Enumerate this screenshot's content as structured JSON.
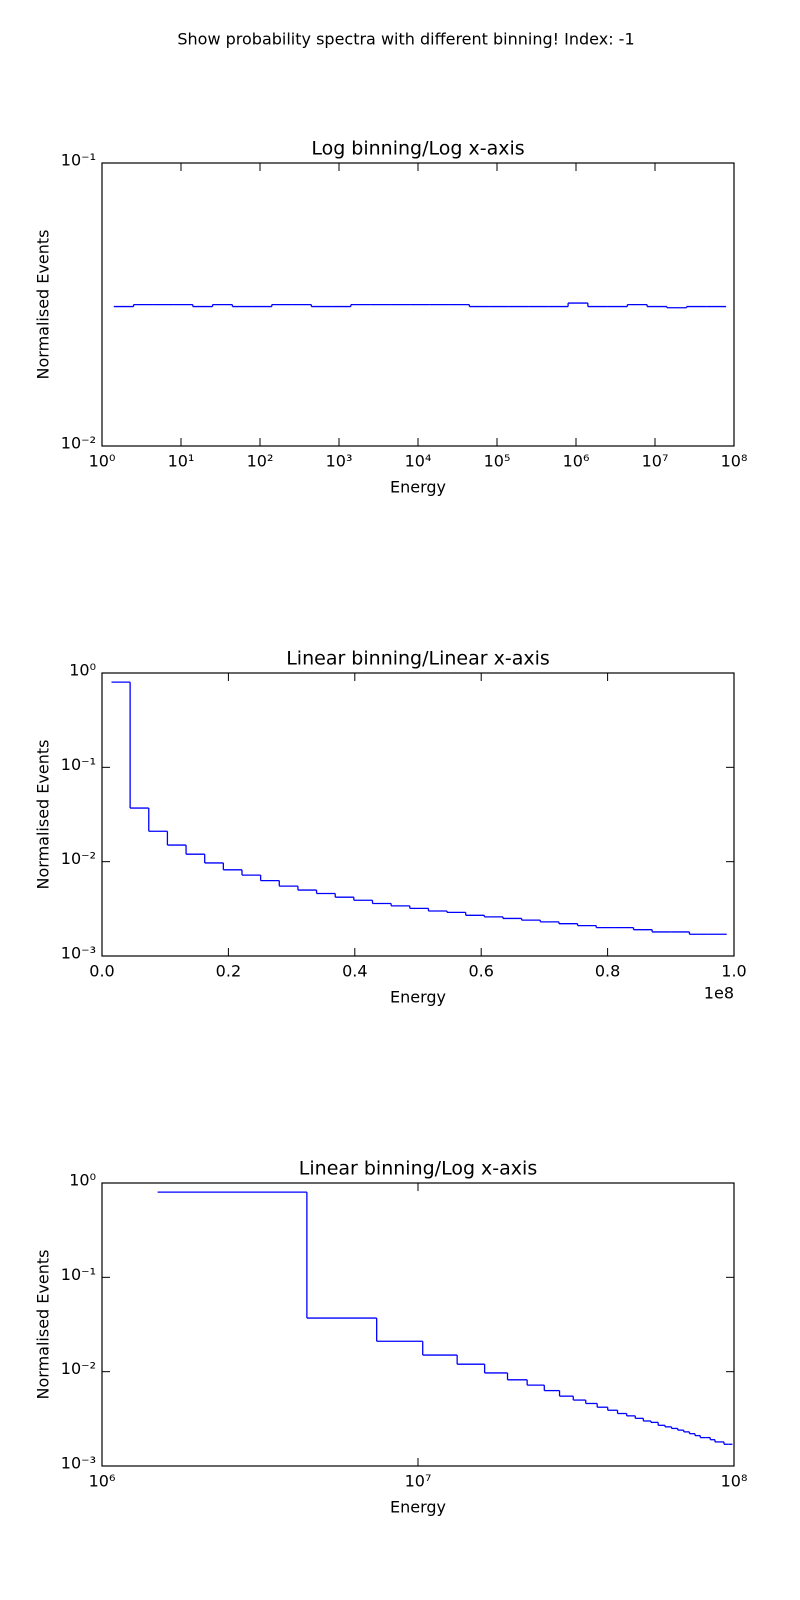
{
  "title": "Show probability spectra with different binning! Index: -1",
  "chart_data": [
    {
      "type": "histogram",
      "title": "Log binning/Log x-axis",
      "xlabel": "Energy",
      "ylabel": "Normalised Events",
      "color": "#0000ff",
      "xscale": "log",
      "yscale": "log",
      "xlim": [
        1,
        100000000
      ],
      "ylim": [
        0.01,
        0.1
      ],
      "xticks": [
        {
          "value": 1,
          "label": "10⁰"
        },
        {
          "value": 10,
          "label": "10¹"
        },
        {
          "value": 100,
          "label": "10²"
        },
        {
          "value": 1000,
          "label": "10³"
        },
        {
          "value": 10000,
          "label": "10⁴"
        },
        {
          "value": 100000,
          "label": "10⁵"
        },
        {
          "value": 1000000,
          "label": "10⁶"
        },
        {
          "value": 10000000,
          "label": "10⁷"
        },
        {
          "value": 100000000,
          "label": "10⁸"
        }
      ],
      "yticks": [
        {
          "value": 0.01,
          "label": "10⁻²"
        },
        {
          "value": 0.1,
          "label": "10⁻¹"
        }
      ],
      "bins": [
        1.41,
        2.51,
        4.47,
        7.94,
        14.1,
        25.1,
        44.7,
        79.4,
        141,
        251,
        447,
        794,
        1413,
        2512,
        4467,
        7943,
        14125,
        25119,
        44668,
        79433,
        141254,
        251189,
        446684,
        794328,
        1412538,
        2511886,
        4466836,
        7943282,
        14125375,
        25118864,
        44668359,
        79432823
      ],
      "values": [
        0.0311,
        0.0316,
        0.0316,
        0.0316,
        0.0311,
        0.0316,
        0.0311,
        0.0311,
        0.0316,
        0.0316,
        0.0311,
        0.0311,
        0.0316,
        0.0316,
        0.0316,
        0.0316,
        0.0316,
        0.0316,
        0.0311,
        0.0311,
        0.0311,
        0.0311,
        0.0311,
        0.032,
        0.0311,
        0.0311,
        0.0316,
        0.0311,
        0.0308,
        0.0311,
        0.0311
      ]
    },
    {
      "type": "histogram",
      "title": "Linear binning/Linear x-axis",
      "xlabel": "Energy",
      "ylabel": "Normalised Events",
      "color": "#0000ff",
      "xscale": "linear",
      "yscale": "log",
      "x_offset_label": "1e8",
      "xlim": [
        0,
        100000000
      ],
      "ylim": [
        0.001,
        1
      ],
      "xticks": [
        {
          "value": 0,
          "label": "0.0"
        },
        {
          "value": 20000000,
          "label": "0.2"
        },
        {
          "value": 40000000,
          "label": "0.4"
        },
        {
          "value": 60000000,
          "label": "0.6"
        },
        {
          "value": 80000000,
          "label": "0.8"
        },
        {
          "value": 100000000,
          "label": "1.0"
        }
      ],
      "yticks": [
        {
          "value": 0.001,
          "label": "10⁻³"
        },
        {
          "value": 0.01,
          "label": "10⁻²"
        },
        {
          "value": 0.1,
          "label": "10⁻¹"
        },
        {
          "value": 1,
          "label": "10⁰"
        }
      ],
      "bins": [
        1500000,
        4450000,
        7400000,
        10350000,
        13300000,
        16250000,
        19200000,
        22150000,
        25100000,
        28050000,
        31000000,
        33950000,
        36900000,
        39850000,
        42800000,
        45750000,
        48700000,
        51650000,
        54600000,
        57550000,
        60500000,
        63450000,
        66400000,
        69350000,
        72300000,
        75250000,
        78200000,
        81150000,
        84100000,
        87050000,
        90000000,
        92950000,
        95900000,
        98850000
      ],
      "values": [
        0.8,
        0.037,
        0.021,
        0.015,
        0.012,
        0.0097,
        0.0082,
        0.0072,
        0.0063,
        0.0055,
        0.005,
        0.0046,
        0.0042,
        0.0039,
        0.0036,
        0.0034,
        0.0032,
        0.003,
        0.0029,
        0.0027,
        0.0026,
        0.0025,
        0.0024,
        0.0023,
        0.0022,
        0.0021,
        0.002,
        0.002,
        0.0019,
        0.0018,
        0.0018,
        0.0017,
        0.0017
      ]
    },
    {
      "type": "histogram",
      "title": "Linear binning/Log x-axis",
      "xlabel": "Energy",
      "ylabel": "Normalised Events",
      "color": "#0000ff",
      "xscale": "log",
      "yscale": "log",
      "xlim": [
        1000000,
        100000000
      ],
      "ylim": [
        0.001,
        1
      ],
      "xticks": [
        {
          "value": 1000000,
          "label": "10⁶"
        },
        {
          "value": 10000000,
          "label": "10⁷"
        },
        {
          "value": 100000000,
          "label": "10⁸"
        }
      ],
      "yticks": [
        {
          "value": 0.001,
          "label": "10⁻³"
        },
        {
          "value": 0.01,
          "label": "10⁻²"
        },
        {
          "value": 0.1,
          "label": "10⁻¹"
        },
        {
          "value": 1,
          "label": "10⁰"
        }
      ],
      "bins": [
        1500000,
        4450000,
        7400000,
        10350000,
        13300000,
        16250000,
        19200000,
        22150000,
        25100000,
        28050000,
        31000000,
        33950000,
        36900000,
        39850000,
        42800000,
        45750000,
        48700000,
        51650000,
        54600000,
        57550000,
        60500000,
        63450000,
        66400000,
        69350000,
        72300000,
        75250000,
        78200000,
        81150000,
        84100000,
        87050000,
        90000000,
        92950000,
        95900000,
        98850000
      ],
      "values": [
        0.8,
        0.037,
        0.021,
        0.015,
        0.012,
        0.0097,
        0.0082,
        0.0072,
        0.0063,
        0.0055,
        0.005,
        0.0046,
        0.0042,
        0.0039,
        0.0036,
        0.0034,
        0.0032,
        0.003,
        0.0029,
        0.0027,
        0.0026,
        0.0025,
        0.0024,
        0.0023,
        0.0022,
        0.0021,
        0.002,
        0.002,
        0.0019,
        0.0018,
        0.0018,
        0.0017,
        0.0017
      ]
    }
  ]
}
